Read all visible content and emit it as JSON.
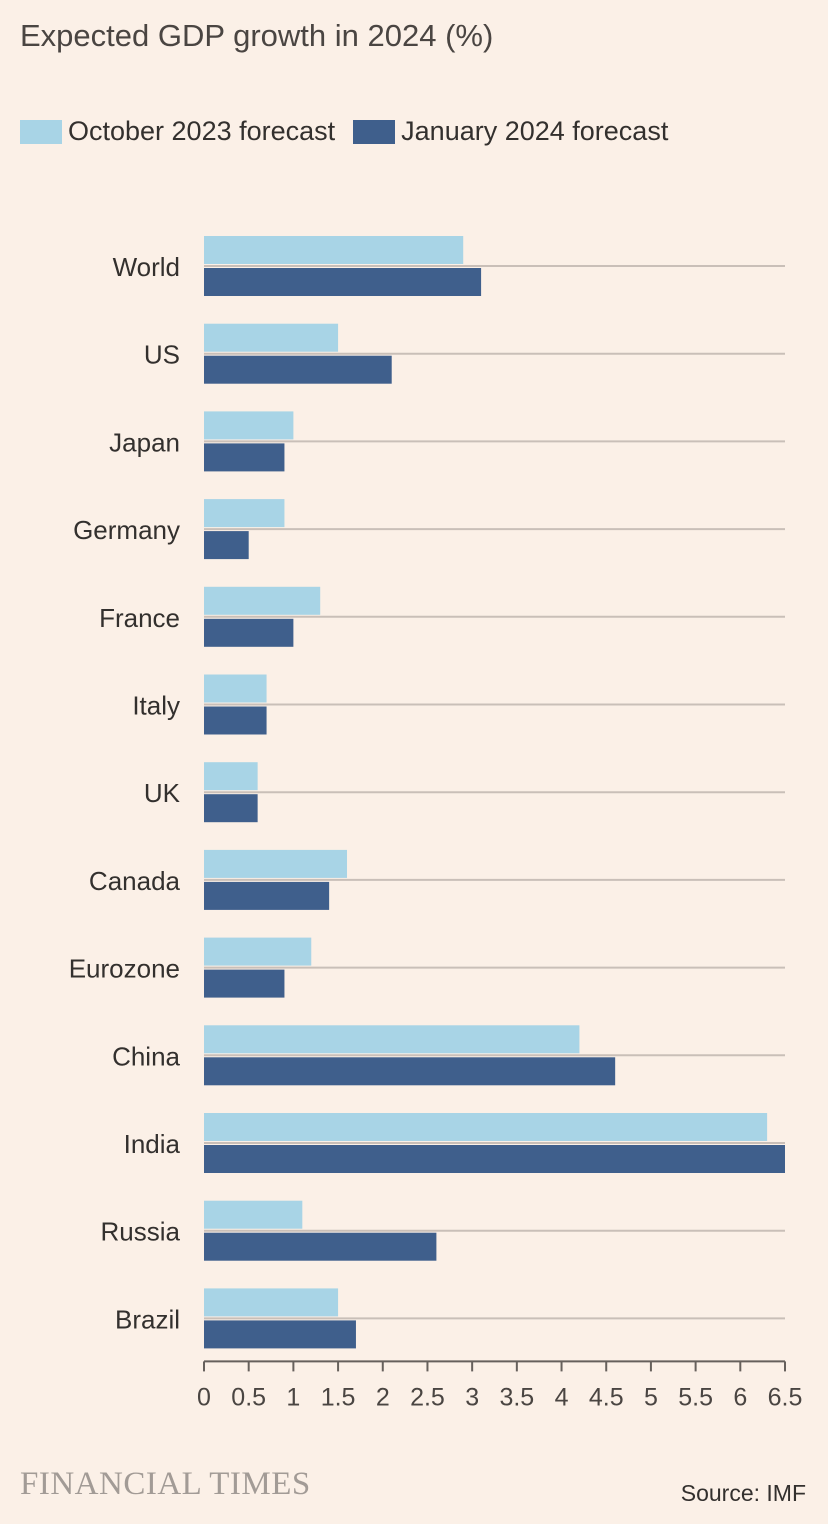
{
  "title": "Expected GDP growth in 2024 (%)",
  "legend": [
    {
      "label": "October 2023 forecast",
      "color": "#a8d4e6"
    },
    {
      "label": "January 2024 forecast",
      "color": "#3f5f8c"
    }
  ],
  "brand": "FINANCIAL TIMES",
  "source": "Source: IMF",
  "chart_data": {
    "type": "bar",
    "orientation": "horizontal",
    "categories": [
      "World",
      "US",
      "Japan",
      "Germany",
      "France",
      "Italy",
      "UK",
      "Canada",
      "Eurozone",
      "China",
      "India",
      "Russia",
      "Brazil"
    ],
    "series": [
      {
        "name": "October 2023 forecast",
        "color": "#a8d4e6",
        "values": [
          2.9,
          1.5,
          1.0,
          0.9,
          1.3,
          0.7,
          0.6,
          1.6,
          1.2,
          4.2,
          6.3,
          1.1,
          1.5
        ]
      },
      {
        "name": "January 2024 forecast",
        "color": "#3f5f8c",
        "values": [
          3.1,
          2.1,
          0.9,
          0.5,
          1.0,
          0.7,
          0.6,
          1.4,
          0.9,
          4.6,
          6.5,
          2.6,
          1.7
        ]
      }
    ],
    "xlim": [
      0,
      6.5
    ],
    "xticks": [
      "0",
      "0.5",
      "1",
      "1.5",
      "2",
      "2.5",
      "3",
      "3.5",
      "4",
      "4.5",
      "5",
      "5.5",
      "6",
      "6.5"
    ],
    "grid": "horizontal separators",
    "legend_position": "top-left",
    "title": "Expected GDP growth in 2024 (%)",
    "xlabel": "",
    "ylabel": ""
  }
}
